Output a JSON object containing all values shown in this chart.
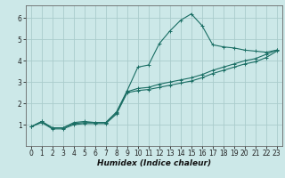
{
  "title": "",
  "xlabel": "Humidex (Indice chaleur)",
  "ylabel": "",
  "bg_color": "#cce8e8",
  "grid_color": "#aacccc",
  "line_color": "#1a6e64",
  "xlim": [
    -0.5,
    23.5
  ],
  "ylim": [
    0,
    6.6
  ],
  "xticks": [
    0,
    1,
    2,
    3,
    4,
    5,
    6,
    7,
    8,
    9,
    10,
    11,
    12,
    13,
    14,
    15,
    16,
    17,
    18,
    19,
    20,
    21,
    22,
    23
  ],
  "yticks": [
    1,
    2,
    3,
    4,
    5,
    6
  ],
  "series": [
    {
      "x": [
        0,
        1,
        2,
        3,
        4,
        5,
        6,
        7,
        8,
        9,
        10,
        11,
        12,
        13,
        14,
        15,
        16,
        17,
        18,
        19,
        20,
        21,
        22,
        23
      ],
      "y": [
        0.9,
        1.15,
        0.85,
        0.85,
        1.1,
        1.15,
        1.1,
        1.1,
        1.6,
        2.6,
        3.7,
        3.8,
        4.8,
        5.4,
        5.9,
        6.2,
        5.65,
        4.75,
        4.65,
        4.6,
        4.5,
        4.45,
        4.4,
        4.5
      ]
    },
    {
      "x": [
        0,
        1,
        2,
        3,
        4,
        5,
        6,
        7,
        8,
        9,
        10,
        11,
        12,
        13,
        14,
        15,
        16,
        17,
        18,
        19,
        20,
        21,
        22,
        23
      ],
      "y": [
        0.9,
        1.15,
        0.85,
        0.85,
        1.05,
        1.1,
        1.1,
        1.1,
        1.55,
        2.55,
        2.7,
        2.75,
        2.9,
        3.0,
        3.1,
        3.2,
        3.35,
        3.55,
        3.7,
        3.85,
        4.0,
        4.1,
        4.3,
        4.5
      ]
    },
    {
      "x": [
        0,
        1,
        2,
        3,
        4,
        5,
        6,
        7,
        8,
        9,
        10,
        11,
        12,
        13,
        14,
        15,
        16,
        17,
        18,
        19,
        20,
        21,
        22,
        23
      ],
      "y": [
        0.9,
        1.1,
        0.8,
        0.8,
        1.0,
        1.05,
        1.05,
        1.05,
        1.5,
        2.5,
        2.6,
        2.65,
        2.75,
        2.85,
        2.95,
        3.05,
        3.2,
        3.4,
        3.55,
        3.7,
        3.85,
        3.95,
        4.15,
        4.45
      ]
    }
  ],
  "xlabel_fontsize": 6.5,
  "tick_fontsize": 5.5,
  "linewidth": 0.8,
  "markersize": 2.5
}
